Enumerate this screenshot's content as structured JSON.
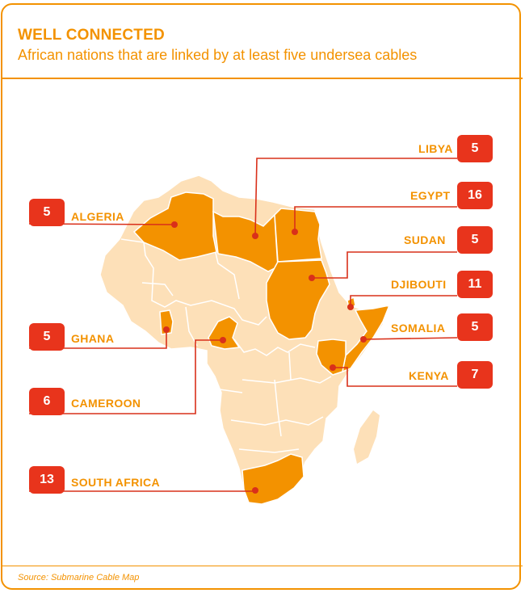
{
  "header": {
    "title": "WELL CONNECTED",
    "subtitle": "African nations that are linked by at least five undersea cables"
  },
  "footer": {
    "source": "Source: Submarine Cable Map"
  },
  "colors": {
    "accent": "#f39200",
    "highlight": "#f39200",
    "land": "#fde0b8",
    "borders": "#ffffff",
    "badge": "#e8341c",
    "leader": "#d9301a"
  },
  "map": {
    "region": "Africa",
    "countries": [
      {
        "name": "LIBYA",
        "cables": 5
      },
      {
        "name": "EGYPT",
        "cables": 16
      },
      {
        "name": "SUDAN",
        "cables": 5
      },
      {
        "name": "DJIBOUTI",
        "cables": 11
      },
      {
        "name": "SOMALIA",
        "cables": 5
      },
      {
        "name": "KENYA",
        "cables": 7
      },
      {
        "name": "ALGERIA",
        "cables": 5
      },
      {
        "name": "GHANA",
        "cables": 5
      },
      {
        "name": "CAMEROON",
        "cables": 6
      },
      {
        "name": "SOUTH AFRICA",
        "cables": 13
      }
    ]
  }
}
